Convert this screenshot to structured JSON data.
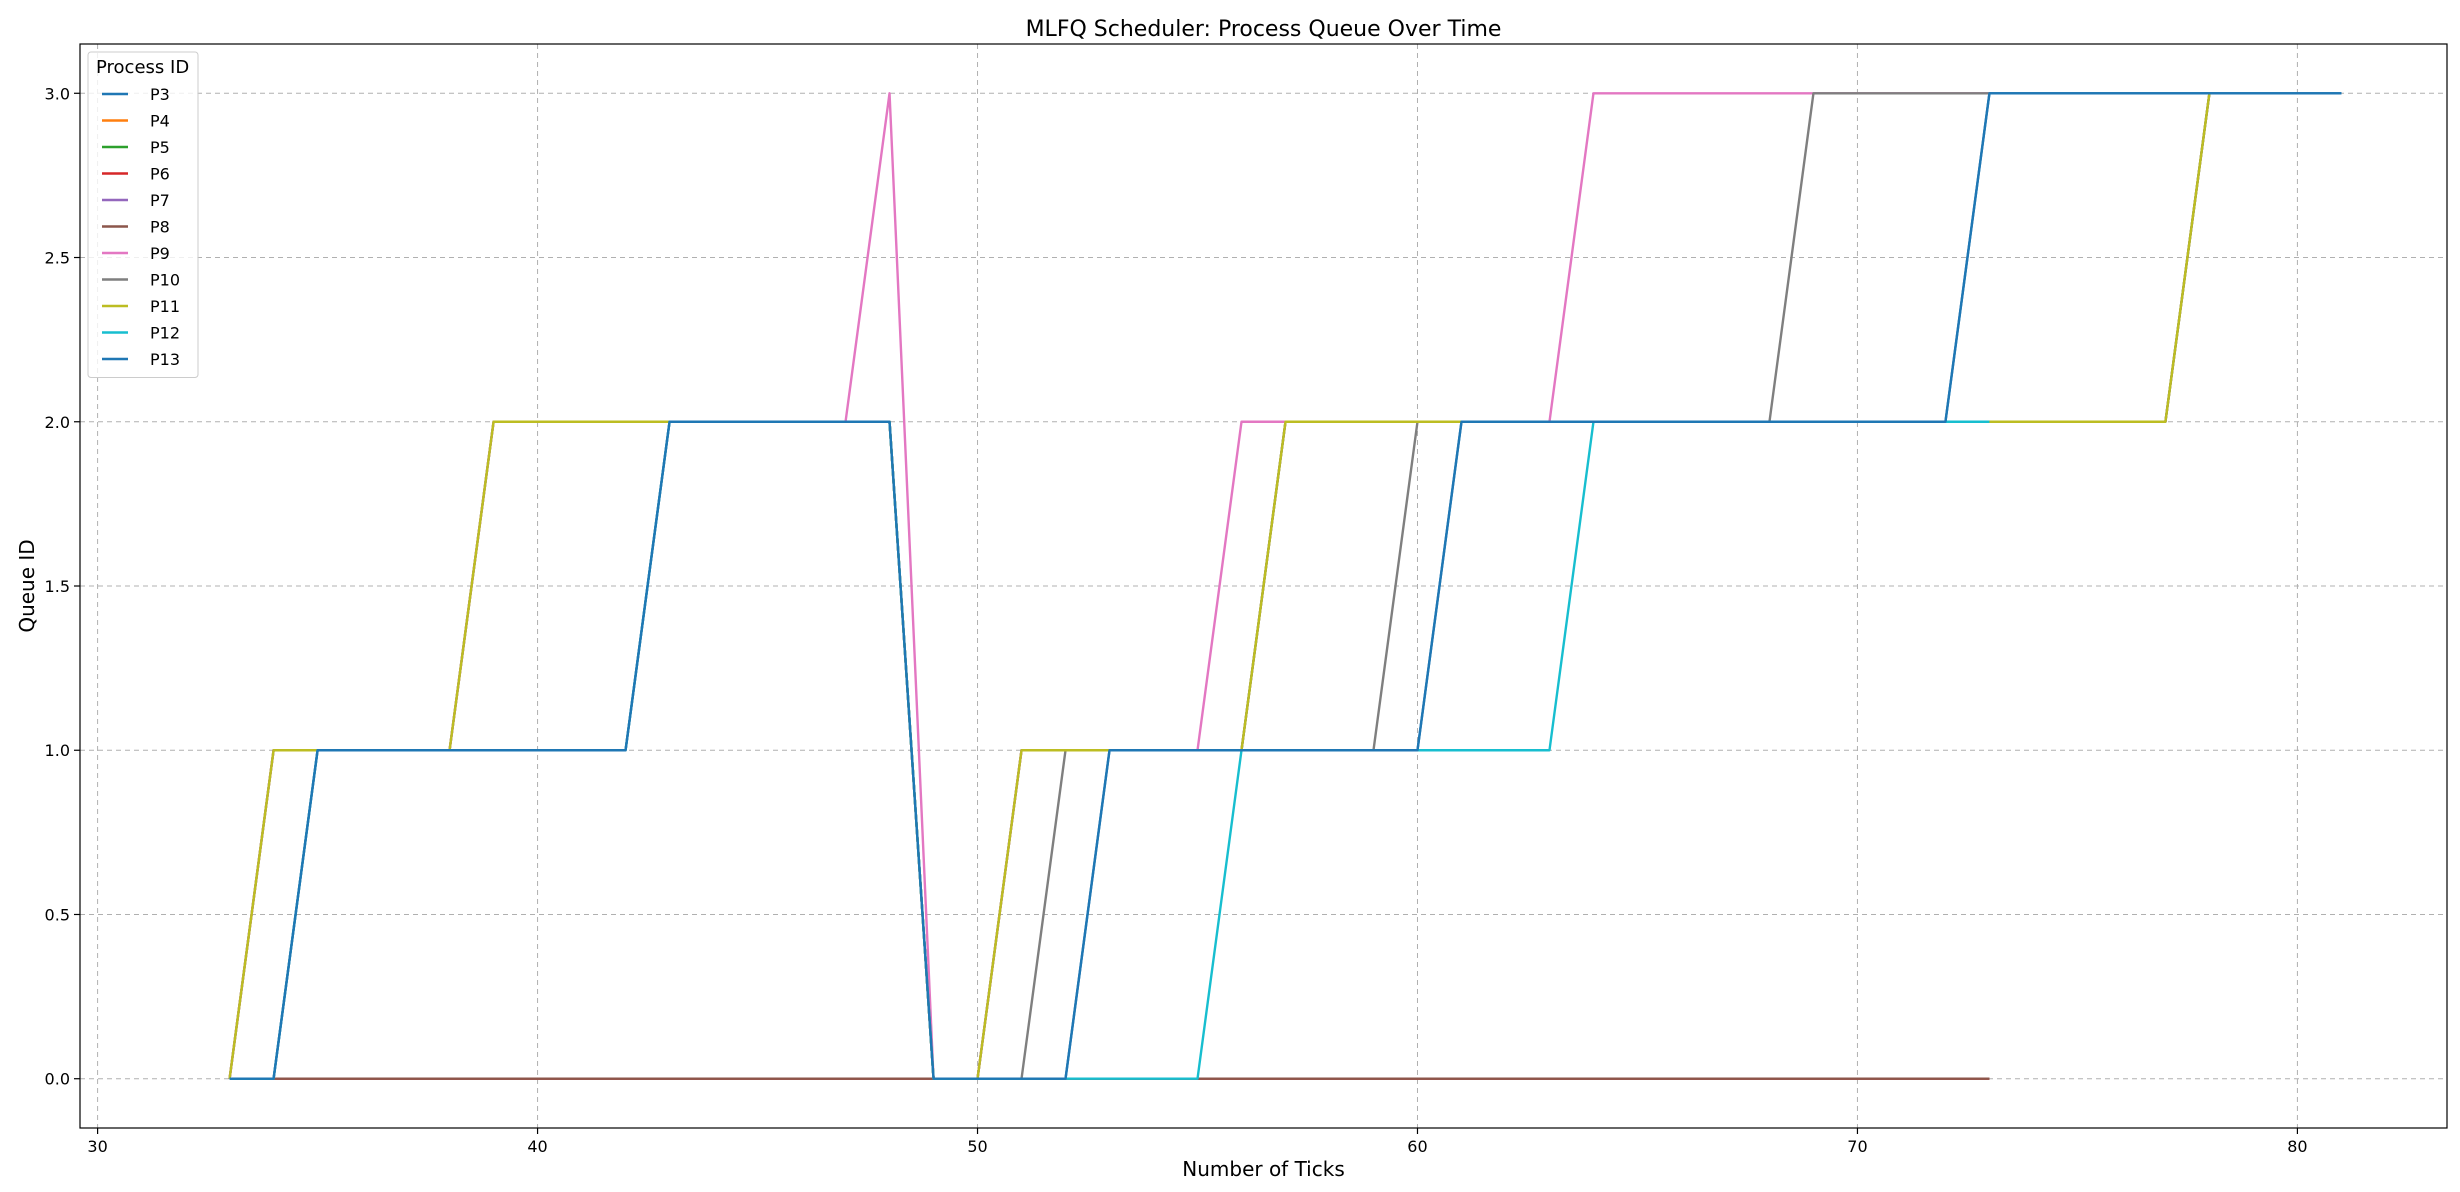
{
  "chart_data": {
    "type": "line",
    "title": "MLFQ Scheduler: Process Queue Over Time",
    "xlabel": "Number of Ticks",
    "ylabel": "Queue ID",
    "xlim": [
      29.6,
      83.4
    ],
    "ylim": [
      -0.15,
      3.15
    ],
    "xticks": [
      30,
      40,
      50,
      60,
      70,
      80
    ],
    "yticks": [
      0.0,
      0.5,
      1.0,
      1.5,
      2.0,
      2.5,
      3.0
    ],
    "xtick_labels": [
      "30",
      "40",
      "50",
      "60",
      "70",
      "80"
    ],
    "ytick_labels": [
      "0.0",
      "0.5",
      "1.0",
      "1.5",
      "2.0",
      "2.5",
      "3.0"
    ],
    "grid": true,
    "legend": {
      "title": "Process ID",
      "position": "top-left"
    },
    "series": [
      {
        "name": "P3",
        "color": "#1f77b4",
        "x": [
          33,
          34,
          35,
          42,
          43,
          48,
          49,
          52,
          53,
          60,
          61,
          72,
          73,
          81
        ],
        "y": [
          0,
          0,
          1,
          1,
          2,
          2,
          0,
          0,
          1,
          1,
          2,
          2,
          3,
          3
        ]
      },
      {
        "name": "P4",
        "color": "#ff7f0e",
        "x": [
          33,
          34,
          38,
          39,
          48,
          49,
          50,
          51,
          56,
          57,
          77,
          78
        ],
        "y": [
          0,
          1,
          1,
          2,
          2,
          0,
          0,
          1,
          1,
          2,
          2,
          3
        ]
      },
      {
        "name": "P5",
        "color": "#2ca02c",
        "x": [
          33,
          34,
          38,
          39,
          48,
          49,
          50,
          51,
          56,
          57,
          77,
          78
        ],
        "y": [
          0,
          1,
          1,
          2,
          2,
          0,
          0,
          1,
          1,
          2,
          2,
          3
        ]
      },
      {
        "name": "P6",
        "color": "#d62728",
        "x": [
          33,
          73
        ],
        "y": [
          0,
          0
        ]
      },
      {
        "name": "P7",
        "color": "#9467bd",
        "x": [
          33,
          34,
          38,
          39,
          48,
          49,
          50,
          51,
          56,
          57,
          77,
          78
        ],
        "y": [
          0,
          1,
          1,
          2,
          2,
          0,
          0,
          1,
          1,
          2,
          2,
          3
        ]
      },
      {
        "name": "P8",
        "color": "#8c564b",
        "x": [
          33,
          73
        ],
        "y": [
          0,
          0
        ]
      },
      {
        "name": "P9",
        "color": "#e377c2",
        "x": [
          33,
          34,
          38,
          39,
          47,
          48,
          49,
          50,
          51,
          55,
          56,
          63,
          64,
          73
        ],
        "y": [
          0,
          1,
          1,
          2,
          2,
          3,
          0,
          0,
          1,
          1,
          2,
          2,
          3,
          3
        ]
      },
      {
        "name": "P10",
        "color": "#7f7f7f",
        "x": [
          33,
          34,
          35,
          42,
          43,
          48,
          49,
          51,
          52,
          59,
          60,
          68,
          69,
          73
        ],
        "y": [
          0,
          0,
          1,
          1,
          2,
          2,
          0,
          0,
          1,
          1,
          2,
          2,
          3,
          3
        ]
      },
      {
        "name": "P11",
        "color": "#bcbd22",
        "x": [
          33,
          34,
          38,
          39,
          48,
          49,
          50,
          51,
          56,
          57,
          77,
          78
        ],
        "y": [
          0,
          1,
          1,
          2,
          2,
          0,
          0,
          1,
          1,
          2,
          2,
          3
        ]
      },
      {
        "name": "P12",
        "color": "#17becf",
        "x": [
          33,
          34,
          35,
          42,
          43,
          48,
          49,
          55,
          56,
          63,
          64,
          73
        ],
        "y": [
          0,
          0,
          1,
          1,
          2,
          2,
          0,
          0,
          1,
          1,
          2,
          2
        ]
      },
      {
        "name": "P13",
        "color": "#1f77b4",
        "x": [
          33,
          34,
          35,
          42,
          43,
          48,
          49,
          52,
          53,
          60,
          61,
          72,
          73,
          81
        ],
        "y": [
          0,
          0,
          1,
          1,
          2,
          2,
          0,
          0,
          1,
          1,
          2,
          2,
          3,
          3
        ]
      }
    ]
  }
}
